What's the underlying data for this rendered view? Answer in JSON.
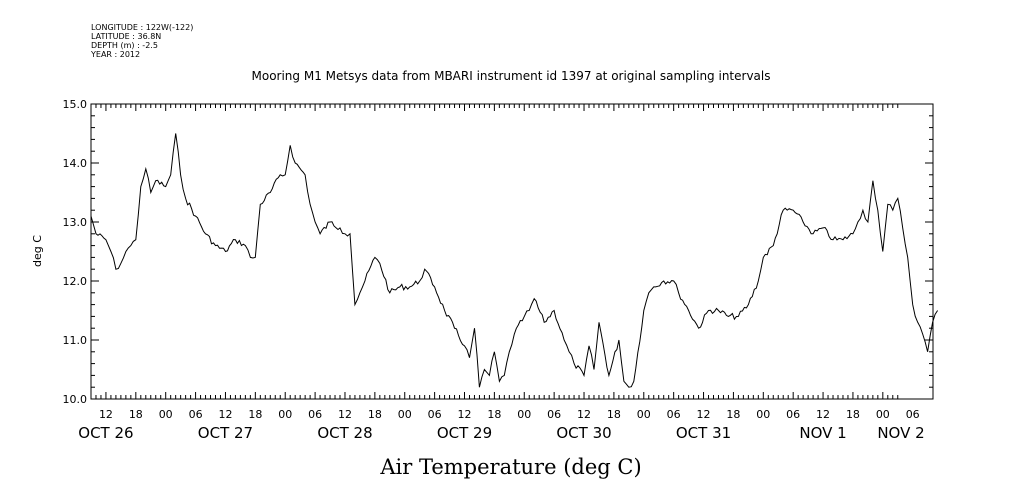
{
  "header": {
    "lines": [
      "LONGITUDE : 122W(-122)",
      "LATITUDE : 36.8N",
      "DEPTH (m) : -2.5",
      "YEAR : 2012"
    ]
  },
  "chart_data": {
    "type": "line",
    "title": "Mooring M1 Metsys data from MBARI instrument id 1397 at original sampling intervals",
    "xlabel": "Air Temperature (deg C)",
    "ylabel": "deg C",
    "ylim": [
      10.0,
      15.0
    ],
    "yticks": [
      10.0,
      11.0,
      12.0,
      13.0,
      14.0,
      15.0
    ],
    "ytick_labels": [
      "10.0",
      "11.0",
      "12.0",
      "13.0",
      "14.0",
      "15.0"
    ],
    "xlim_hours": [
      "2012-10-26 09:00",
      "2012-11-02 03:00"
    ],
    "hour_labels": [
      {
        "t": "2012-10-26 12:00",
        "label": "12"
      },
      {
        "t": "2012-10-26 18:00",
        "label": "18"
      },
      {
        "t": "2012-10-27 00:00",
        "label": "00"
      },
      {
        "t": "2012-10-27 06:00",
        "label": "06"
      },
      {
        "t": "2012-10-27 12:00",
        "label": "12"
      },
      {
        "t": "2012-10-27 18:00",
        "label": "18"
      },
      {
        "t": "2012-10-28 00:00",
        "label": "00"
      },
      {
        "t": "2012-10-28 06:00",
        "label": "06"
      },
      {
        "t": "2012-10-28 12:00",
        "label": "12"
      },
      {
        "t": "2012-10-28 18:00",
        "label": "18"
      },
      {
        "t": "2012-10-29 00:00",
        "label": "00"
      },
      {
        "t": "2012-10-29 06:00",
        "label": "06"
      },
      {
        "t": "2012-10-29 12:00",
        "label": "12"
      },
      {
        "t": "2012-10-29 18:00",
        "label": "18"
      },
      {
        "t": "2012-10-30 00:00",
        "label": "00"
      },
      {
        "t": "2012-10-30 06:00",
        "label": "06"
      },
      {
        "t": "2012-10-30 12:00",
        "label": "12"
      },
      {
        "t": "2012-10-30 18:00",
        "label": "18"
      },
      {
        "t": "2012-10-31 00:00",
        "label": "00"
      },
      {
        "t": "2012-10-31 06:00",
        "label": "06"
      },
      {
        "t": "2012-10-31 12:00",
        "label": "12"
      },
      {
        "t": "2012-10-31 18:00",
        "label": "18"
      },
      {
        "t": "2012-11-01 00:00",
        "label": "00"
      },
      {
        "t": "2012-11-01 06:00",
        "label": "06"
      },
      {
        "t": "2012-11-01 12:00",
        "label": "12"
      },
      {
        "t": "2012-11-01 18:00",
        "label": "18"
      },
      {
        "t": "2012-11-02 00:00",
        "label": "00"
      },
      {
        "t": "2012-11-02 06:00",
        "label": "06"
      }
    ],
    "day_labels": [
      {
        "t": "2012-10-26 12:00",
        "label": "OCT 26"
      },
      {
        "t": "2012-10-27 12:00",
        "label": "OCT 27"
      },
      {
        "t": "2012-10-28 12:00",
        "label": "OCT 28"
      },
      {
        "t": "2012-10-29 12:00",
        "label": "OCT 29"
      },
      {
        "t": "2012-10-30 12:00",
        "label": "OCT 30"
      },
      {
        "t": "2012-10-31 12:00",
        "label": "OCT 31"
      },
      {
        "t": "2012-11-01 12:00",
        "label": "NOV  1"
      },
      {
        "t": "2012-11-02 12:00",
        "label": "NOV  2"
      }
    ],
    "series": [
      {
        "x": [
          "2012-10-26 09:00",
          "2012-10-26 10:00",
          "2012-10-26 12:00",
          "2012-10-26 13:00",
          "2012-10-26 14:00",
          "2012-10-26 15:00",
          "2012-10-26 16:00",
          "2012-10-26 17:00",
          "2012-10-26 18:00",
          "2012-10-26 19:00",
          "2012-10-26 20:00",
          "2012-10-26 21:00",
          "2012-10-26 22:00",
          "2012-10-27 00:00",
          "2012-10-27 01:00",
          "2012-10-27 02:00",
          "2012-10-27 03:00",
          "2012-10-27 04:00",
          "2012-10-27 06:00",
          "2012-10-27 08:00",
          "2012-10-27 10:00",
          "2012-10-27 12:00",
          "2012-10-27 14:00",
          "2012-10-27 16:00",
          "2012-10-27 17:00",
          "2012-10-27 18:00",
          "2012-10-27 19:00",
          "2012-10-27 21:00",
          "2012-10-27 23:00",
          "2012-10-28 00:00",
          "2012-10-28 01:00",
          "2012-10-28 02:00",
          "2012-10-28 04:00",
          "2012-10-28 05:00",
          "2012-10-28 06:00",
          "2012-10-28 07:00",
          "2012-10-28 09:00",
          "2012-10-28 11:00",
          "2012-10-28 12:00",
          "2012-10-28 13:00",
          "2012-10-28 14:00",
          "2012-10-28 15:00",
          "2012-10-28 16:00",
          "2012-10-28 18:00",
          "2012-10-28 19:00",
          "2012-10-28 21:00",
          "2012-10-28 23:00",
          "2012-10-29 01:00",
          "2012-10-29 03:00",
          "2012-10-29 04:00",
          "2012-10-29 06:00",
          "2012-10-29 08:00",
          "2012-10-29 10:00",
          "2012-10-29 12:00",
          "2012-10-29 13:00",
          "2012-10-29 14:00",
          "2012-10-29 15:00",
          "2012-10-29 16:00",
          "2012-10-29 17:00",
          "2012-10-29 18:00",
          "2012-10-29 19:00",
          "2012-10-29 20:00",
          "2012-10-29 21:00",
          "2012-10-29 22:00",
          "2012-10-30 00:00",
          "2012-10-30 01:00",
          "2012-10-30 02:00",
          "2012-10-30 04:00",
          "2012-10-30 06:00",
          "2012-10-30 08:00",
          "2012-10-30 09:00",
          "2012-10-30 10:00",
          "2012-10-30 12:00",
          "2012-10-30 13:00",
          "2012-10-30 14:00",
          "2012-10-30 15:00",
          "2012-10-30 17:00",
          "2012-10-30 19:00",
          "2012-10-30 20:00",
          "2012-10-30 21:00",
          "2012-10-30 22:00",
          "2012-10-31 00:00",
          "2012-10-31 01:00",
          "2012-10-31 02:00",
          "2012-10-31 04:00",
          "2012-10-31 06:00",
          "2012-10-31 07:00",
          "2012-10-31 09:00",
          "2012-10-31 11:00",
          "2012-10-31 13:00",
          "2012-10-31 15:00",
          "2012-10-31 17:00",
          "2012-10-31 19:00",
          "2012-10-31 21:00",
          "2012-10-31 23:00",
          "2012-11-01 00:00",
          "2012-11-01 02:00",
          "2012-11-01 04:00",
          "2012-11-01 06:00",
          "2012-11-01 08:00",
          "2012-11-01 10:00",
          "2012-11-01 12:00",
          "2012-11-01 14:00",
          "2012-11-01 16:00",
          "2012-11-01 18:00",
          "2012-11-01 19:00",
          "2012-11-01 20:00",
          "2012-11-01 21:00",
          "2012-11-01 22:00",
          "2012-11-01 23:00",
          "2012-11-02 00:00",
          "2012-11-02 01:00",
          "2012-11-02 02:00",
          "2012-11-02 03:00",
          "2012-11-02 04:00",
          "2012-11-02 05:00",
          "2012-11-02 06:00",
          "2012-11-02 07:00",
          "2012-11-02 08:00",
          "2012-11-02 09:00",
          "2012-11-02 10:00",
          "2012-11-02 11:00"
        ],
        "y": [
          13.1,
          12.8,
          12.7,
          12.5,
          12.2,
          12.3,
          12.5,
          12.6,
          12.7,
          13.6,
          13.9,
          13.5,
          13.7,
          13.6,
          13.8,
          14.5,
          13.8,
          13.4,
          13.1,
          12.8,
          12.6,
          12.5,
          12.7,
          12.6,
          12.4,
          12.4,
          13.3,
          13.5,
          13.8,
          13.8,
          14.3,
          14.0,
          13.8,
          13.3,
          13.0,
          12.8,
          13.0,
          12.9,
          12.8,
          12.8,
          11.6,
          11.8,
          12.0,
          12.4,
          12.3,
          11.8,
          11.9,
          11.9,
          12.0,
          12.2,
          11.9,
          11.5,
          11.2,
          10.9,
          10.7,
          11.2,
          10.2,
          10.5,
          10.4,
          10.8,
          10.3,
          10.4,
          10.8,
          11.1,
          11.4,
          11.5,
          11.7,
          11.3,
          11.5,
          11.0,
          10.8,
          10.6,
          10.4,
          10.9,
          10.5,
          11.3,
          10.4,
          11.0,
          10.3,
          10.2,
          10.3,
          11.5,
          11.8,
          11.9,
          12.0,
          12.0,
          11.8,
          11.5,
          11.2,
          11.5,
          11.5,
          11.4,
          11.4,
          11.6,
          12.0,
          12.4,
          12.6,
          13.2,
          13.2,
          13.0,
          12.8,
          12.9,
          12.7,
          12.7,
          12.8,
          13.0,
          13.2,
          13.0,
          13.7,
          13.2,
          12.5,
          13.3,
          13.2,
          13.4,
          12.9,
          12.4,
          11.6,
          11.3,
          11.1,
          10.8,
          11.3,
          11.5
        ]
      }
    ]
  }
}
